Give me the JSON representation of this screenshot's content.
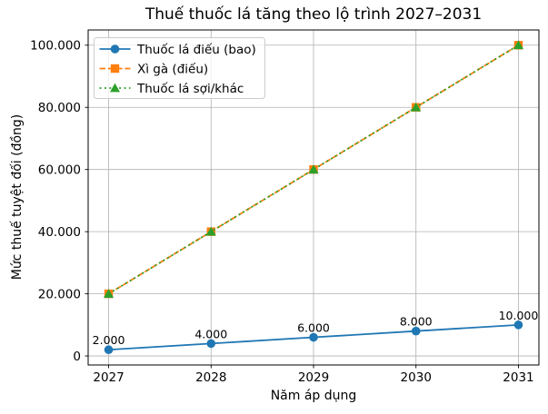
{
  "chart_data": {
    "type": "line",
    "title": "Thuế thuốc lá tăng theo lộ trình 2027–2031",
    "xlabel": "Năm áp dụng",
    "ylabel": "Mức thuế tuyệt đối (đồng)",
    "x": [
      2027,
      2028,
      2029,
      2030,
      2031
    ],
    "x_tick_labels": [
      "2027",
      "2028",
      "2029",
      "2030",
      "2031"
    ],
    "y_ticks": [
      0,
      20000,
      40000,
      60000,
      80000,
      100000
    ],
    "y_tick_labels": [
      "0",
      "20.000",
      "40.000",
      "60.000",
      "80.000",
      "100.000"
    ],
    "xlim": [
      2026.8,
      2031.2
    ],
    "ylim": [
      -2900,
      104900
    ],
    "grid": true,
    "legend_position": "upper-left",
    "series": [
      {
        "name": "Thuốc lá điếu (bao)",
        "values": [
          2000,
          4000,
          6000,
          8000,
          10000
        ],
        "data_labels": [
          "2.000",
          "4.000",
          "6.000",
          "8.000",
          "10.000"
        ],
        "color": "#1f77b4",
        "line_style": "solid",
        "marker": "circle"
      },
      {
        "name": "Xì gà (điếu)",
        "values": [
          20000,
          40000,
          60000,
          80000,
          100000
        ],
        "data_labels": null,
        "color": "#ff7f0e",
        "line_style": "dashed",
        "marker": "square"
      },
      {
        "name": "Thuốc lá sợi/khác",
        "values": [
          20000,
          40000,
          60000,
          80000,
          100000
        ],
        "data_labels": null,
        "color": "#2ca02c",
        "line_style": "dotted",
        "marker": "triangle"
      }
    ],
    "colors": {
      "grid": "#b0b0b0",
      "axis": "#000000",
      "text": "#000000",
      "background": "#ffffff",
      "legend_border": "#cccccc",
      "legend_background": "rgba(255,255,255,0.8)"
    }
  }
}
